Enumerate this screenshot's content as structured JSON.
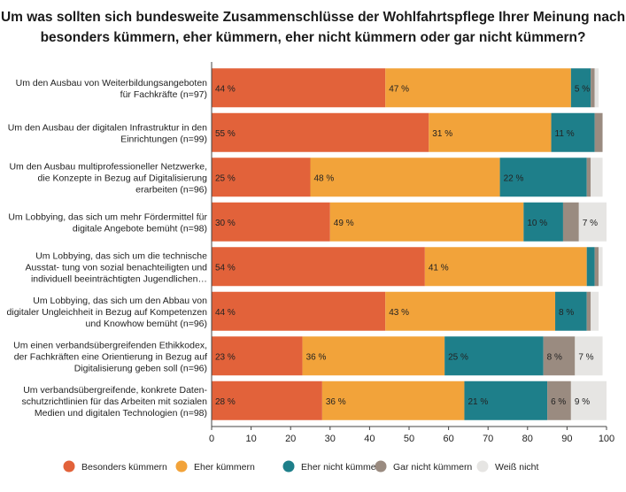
{
  "chart_data": {
    "type": "bar",
    "orientation": "horizontal",
    "stacked": true,
    "title_lines": [
      "Um was sollten sich bundesweite Zusammenschlüsse der Wohlfahrtspflege Ihrer Meinung nach",
      "besonders kümmern, eher kümmern, eher nicht kümmern oder gar nicht kümmern?"
    ],
    "categories": [
      [
        "Um den Ausbau von Weiterbildungsangeboten",
        "für Fachkräfte (n=97)"
      ],
      [
        "Um den Ausbau der digitalen Infrastruktur in den",
        "Einrichtungen (n=99)"
      ],
      [
        "Um den Ausbau multiprofessioneller Netzwerke,",
        "die Konzepte in Bezug auf Digitalisierung",
        "erarbeiten (n=96)"
      ],
      [
        "Um Lobbying, das sich um mehr Fördermittel für",
        "digitale Angebote bemüht (n=98)"
      ],
      [
        "Um Lobbying, das sich um die technische",
        "Ausstat- tung von sozial benachteiligten und",
        "individuell beeinträchtigten Jugendlichen…"
      ],
      [
        "Um Lobbying, das sich um den Abbau von",
        "digitaler Ungleichheit in Bezug auf Kompetenzen",
        "und Knowhow bemüht (n=96)"
      ],
      [
        "Um einen verbandsübergreifenden Ethikkodex,",
        "der Fachkräften eine Orientierung in Bezug auf",
        "Digitalisierung geben soll (n=96)"
      ],
      [
        "Um verbandsübergreifende, konkrete Daten-",
        "schutzrichtlinien für das Arbeiten mit sozialen",
        "Medien und digitalen Technologien (n=98)"
      ]
    ],
    "series": [
      {
        "name": "Besonders kümmern",
        "color": "#E2623A",
        "values": [
          44,
          55,
          25,
          30,
          54,
          44,
          23,
          28
        ],
        "labels": [
          "44 %",
          "55 %",
          "25 %",
          "30 %",
          "54 %",
          "44 %",
          "23 %",
          "28 %"
        ]
      },
      {
        "name": "Eher kümmern",
        "color": "#F2A33A",
        "values": [
          47,
          31,
          48,
          49,
          41,
          43,
          36,
          36
        ],
        "labels": [
          "47 %",
          "31 %",
          "48 %",
          "49 %",
          "41 %",
          "43 %",
          "36 %",
          "36 %"
        ]
      },
      {
        "name": "Eher nicht kümmern",
        "color": "#1E7F8A",
        "values": [
          5,
          11,
          22,
          10,
          2,
          8,
          25,
          21
        ],
        "labels": [
          "5 %",
          "11 %",
          "22 %",
          "10 %",
          "",
          "8 %",
          "25 %",
          "21 %"
        ]
      },
      {
        "name": "Gar nicht kümmern",
        "color": "#9A8B80",
        "values": [
          1,
          2,
          1,
          4,
          1,
          1,
          8,
          6
        ],
        "labels": [
          "",
          "",
          "",
          "",
          "",
          "",
          "8 %",
          "6 %"
        ]
      },
      {
        "name": "Weiß nicht",
        "color": "#E6E5E3",
        "values": [
          1,
          0,
          3,
          7,
          1,
          2,
          7,
          9
        ],
        "labels": [
          "",
          "",
          "",
          "7 %",
          "",
          "",
          "7 %",
          "9 %"
        ]
      }
    ],
    "xlim": [
      0,
      100
    ],
    "xticks": [
      0,
      10,
      20,
      30,
      40,
      50,
      60,
      70,
      80,
      90,
      100
    ],
    "grid": false,
    "legend_position": "bottom"
  }
}
